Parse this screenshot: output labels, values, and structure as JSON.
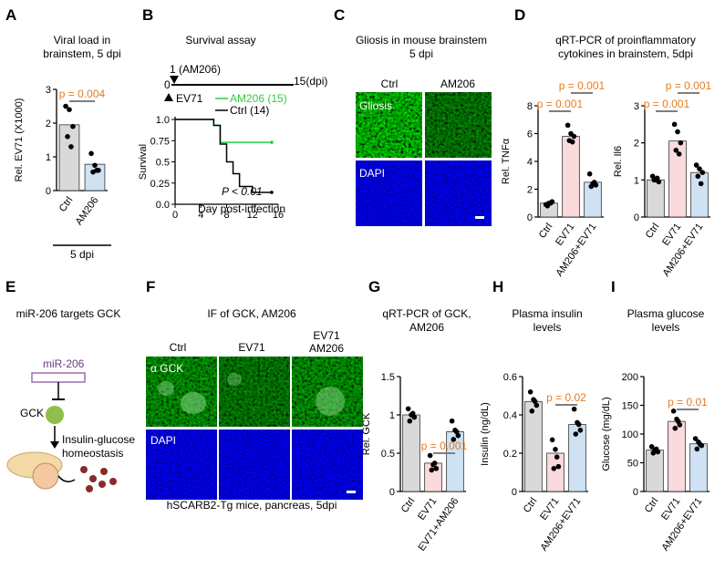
{
  "colors": {
    "ctrl": "#d9d9d9",
    "ev71": "#fadadd",
    "am206": "#cfe2f3",
    "pval": "#e97b1f",
    "green": "#2ecc40",
    "black": "#000000",
    "fluor_green": "#1f7a1f",
    "fluor_blue": "#1a1aa6",
    "bar_line": "#7f7f7f"
  },
  "panels": {
    "A": {
      "letter": "A",
      "title1": "Viral load in",
      "title2": "brainstem, 5 dpi",
      "ylabel": "Rel. EV71 (X1000)",
      "pval": "p = 0.004",
      "xlabel": "5 dpi"
    },
    "B": {
      "letter": "B",
      "title": "Survival assay",
      "dose_label": "1 (AM206)",
      "dpi_end": "15(dpi)",
      "zero": "0",
      "ev71_label": "EV71",
      "ylabel": "Survival",
      "xlabel": "Day post-infection",
      "pval": "P < 0.01"
    },
    "C": {
      "letter": "C",
      "title1": "Gliosis in mouse brainstem",
      "title2": "5 dpi",
      "col1": "Ctrl",
      "col2": "AM206",
      "row1": "Gliosis",
      "row2": "DAPI"
    },
    "D": {
      "letter": "D",
      "title1": "qRT-PCR of  proinflammatory",
      "title2": "cytokines in brainstem, 5dpi",
      "ylabel1": "Rel. TNFα",
      "ylabel2": "Rel. Il6",
      "p1": "p = 0.001",
      "p2": "p = 0.001",
      "p3": "p = 0.001",
      "p4": "p = 0.001"
    },
    "E": {
      "letter": "E",
      "title": "miR-206 targets GCK",
      "mir": "miR-206",
      "gck": "GCK",
      "homeo1": "Insulin-glucose",
      "homeo2": "homeostasis"
    },
    "F": {
      "letter": "F",
      "title": "IF of GCK, AM206",
      "col1": "Ctrl",
      "col2": "EV71",
      "col3a": "EV71",
      "col3b": "AM206",
      "row1": "α GCK",
      "row2": "DAPI",
      "caption": "hSCARB2-Tg mice, pancreas, 5dpi"
    },
    "G": {
      "letter": "G",
      "title1": "qRT-PCR of GCK,",
      "title2": "AM206",
      "ylabel": "Rel. GCK",
      "pval": "p = 0.001"
    },
    "H": {
      "letter": "H",
      "title1": "Plasma insulin",
      "title2": "levels",
      "ylabel": "Insulin (ng/dL)",
      "pval": "p = 0.02"
    },
    "I": {
      "letter": "I",
      "title1": "Plasma glucose",
      "title2": "levels",
      "ylabel": "Glucose (mg/dL)",
      "pval": "p = 0.01"
    }
  },
  "chart_data": [
    {
      "id": "A",
      "type": "bar",
      "title": "Viral load in brainstem, 5 dpi",
      "ylabel": "Rel. EV71 (X1000)",
      "categories": [
        "Ctrl",
        "AM206"
      ],
      "values": [
        1.95,
        0.78
      ],
      "ylim": [
        0,
        3
      ],
      "yticks": [
        0,
        1,
        2,
        3
      ],
      "points": [
        [
          2.5,
          2.4,
          1.9,
          1.6,
          1.3
        ],
        [
          1.1,
          0.75,
          0.6,
          0.55,
          0.6
        ]
      ]
    },
    {
      "id": "B",
      "type": "line",
      "title": "Survival assay",
      "ylabel": "Survival",
      "xlabel": "Day post-infection",
      "xlim": [
        0,
        16
      ],
      "ylim": [
        0,
        1
      ],
      "xticks": [
        0,
        4,
        8,
        12,
        16
      ],
      "yticks": [
        0,
        0.25,
        0.5,
        0.75,
        1.0
      ],
      "series": [
        {
          "name": "AM206 (15)",
          "x": [
            0,
            6,
            6,
            7,
            7,
            15
          ],
          "y": [
            1.0,
            1.0,
            0.93,
            0.93,
            0.73,
            0.73
          ]
        },
        {
          "name": "Ctrl (14)",
          "x": [
            0,
            6,
            6,
            7,
            7,
            8,
            8,
            9,
            9,
            10,
            10,
            12,
            12,
            15
          ],
          "y": [
            1.0,
            1.0,
            0.93,
            0.93,
            0.71,
            0.71,
            0.5,
            0.5,
            0.36,
            0.36,
            0.21,
            0.21,
            0.14,
            0.14
          ]
        }
      ]
    },
    {
      "id": "D1",
      "type": "bar",
      "ylabel": "Rel. TNFα",
      "categories": [
        "Ctrl",
        "EV71",
        "AM206+EV71"
      ],
      "values": [
        1.0,
        5.8,
        2.5
      ],
      "ylim": [
        0,
        8
      ],
      "yticks": [
        0,
        2,
        4,
        6,
        8
      ],
      "points": [
        [
          0.9,
          1.0,
          1.1,
          0.8,
          1.0
        ],
        [
          6.6,
          6.0,
          5.8,
          5.5,
          5.4
        ],
        [
          3.1,
          2.4,
          2.3,
          2.2,
          2.5
        ]
      ]
    },
    {
      "id": "D2",
      "type": "bar",
      "ylabel": "Rel. Il6",
      "categories": [
        "Ctrl",
        "EV71",
        "AM206+EV71"
      ],
      "values": [
        1.0,
        2.05,
        1.2
      ],
      "ylim": [
        0,
        3
      ],
      "yticks": [
        0,
        1,
        2,
        3
      ],
      "points": [
        [
          1.1,
          1.0,
          0.95,
          1.0,
          1.05
        ],
        [
          2.5,
          2.3,
          2.0,
          1.8,
          1.7
        ],
        [
          1.4,
          1.3,
          1.2,
          1.1,
          0.9
        ]
      ]
    },
    {
      "id": "G",
      "type": "bar",
      "ylabel": "Rel. GCK",
      "categories": [
        "Ctrl",
        "EV71",
        "EV71+AM206"
      ],
      "values": [
        1.0,
        0.37,
        0.78
      ],
      "ylim": [
        0,
        1.5
      ],
      "yticks": [
        0,
        0.5,
        1.0,
        1.5
      ],
      "points": [
        [
          1.08,
          1.0,
          0.97,
          0.92,
          1.02
        ],
        [
          0.47,
          0.35,
          0.3,
          0.28,
          0.37
        ],
        [
          0.92,
          0.8,
          0.73,
          0.68,
          0.78
        ]
      ]
    },
    {
      "id": "H",
      "type": "bar",
      "ylabel": "Insulin (ng/dL)",
      "categories": [
        "Ctrl",
        "EV71",
        "AM206+EV71"
      ],
      "values": [
        0.47,
        0.2,
        0.35
      ],
      "ylim": [
        0,
        0.6
      ],
      "yticks": [
        0,
        0.2,
        0.4,
        0.6
      ],
      "points": [
        [
          0.52,
          0.48,
          0.45,
          0.42,
          0.47
        ],
        [
          0.27,
          0.22,
          0.13,
          0.12,
          0.18
        ],
        [
          0.43,
          0.36,
          0.32,
          0.3,
          0.35
        ]
      ]
    },
    {
      "id": "I",
      "type": "bar",
      "ylabel": "Glucose (mg/dL)",
      "categories": [
        "Ctrl",
        "EV71",
        "AM206+EV71"
      ],
      "values": [
        72,
        122,
        83
      ],
      "ylim": [
        0,
        200
      ],
      "yticks": [
        0,
        50,
        100,
        150,
        200
      ],
      "points": [
        [
          78,
          72,
          69,
          67,
          74
        ],
        [
          140,
          126,
          116,
          110,
          122
        ],
        [
          92,
          86,
          80,
          74,
          82
        ]
      ]
    }
  ]
}
